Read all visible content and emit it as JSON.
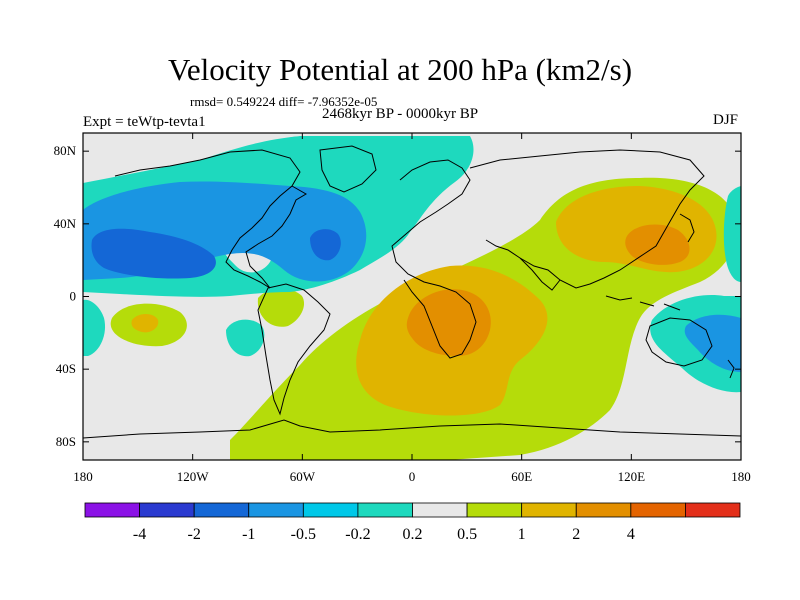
{
  "title": "Velocity Potential at 200 hPa (km2/s)",
  "stats": "rmsd= 0.549224 diff= -7.96352e-05",
  "period": "2468kyr BP - 0000kyr BP",
  "experiment": "Expt = teWtp-tevta1",
  "season": "DJF",
  "map": {
    "projection": "cylindrical-equidistant",
    "lon_range": [
      -180,
      180
    ],
    "lat_range": [
      -90,
      90
    ],
    "lon_ticks": [
      {
        "value": -180,
        "label": "180"
      },
      {
        "value": -120,
        "label": "120W"
      },
      {
        "value": -60,
        "label": "60W"
      },
      {
        "value": 0,
        "label": "0"
      },
      {
        "value": 60,
        "label": "60E"
      },
      {
        "value": 120,
        "label": "120E"
      },
      {
        "value": 180,
        "label": "180"
      }
    ],
    "lat_ticks": [
      {
        "value": 80,
        "label": "80N"
      },
      {
        "value": 40,
        "label": "40N"
      },
      {
        "value": 0,
        "label": "0"
      },
      {
        "value": -40,
        "label": "40S"
      },
      {
        "value": -80,
        "label": "80S"
      }
    ],
    "background_color": "#e8e8e8"
  },
  "colorbar": {
    "colors": [
      "#8b12e6",
      "#2a3ad0",
      "#1467d6",
      "#1a95e2",
      "#00c8e8",
      "#1ed9be",
      "#e8e8e8",
      "#b5dc0a",
      "#e0b400",
      "#e38f00",
      "#e46400",
      "#e32f1a"
    ],
    "labels": [
      "-4",
      "-2",
      "-1",
      "-0.5",
      "-0.2",
      "0.2",
      "0.5",
      "1",
      "2",
      "4"
    ]
  },
  "field_colors": {
    "neg_01": "#1ed9be",
    "neg_05": "#1a95e2",
    "neg_1": "#1467d6",
    "pos_02": "#b5dc0a",
    "pos_05": "#e0b400",
    "pos_1": "#e38f00"
  }
}
